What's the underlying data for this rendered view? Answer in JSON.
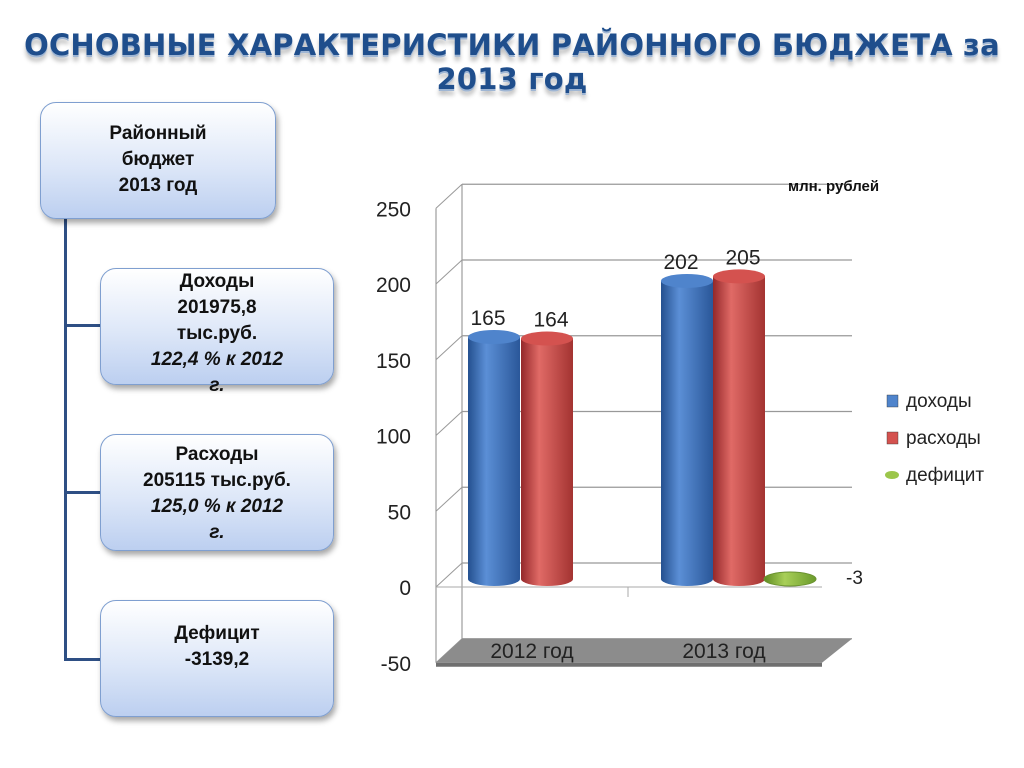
{
  "title": "ОСНОВНЫЕ ХАРАКТЕРИСТИКИ РАЙОННОГО БЮДЖЕТА за 2013 год",
  "budget_box": {
    "line1": "Районный",
    "line2": "бюджет",
    "line3": "2013 год"
  },
  "income_box": {
    "line1": "Доходы",
    "line2": "201975,8",
    "line3": "тыс.руб.",
    "line4": "122,4 % к 2012",
    "line5": "г."
  },
  "expense_box": {
    "line1": "Расходы",
    "line2": "205115 тыс.руб.",
    "line3": "125,0 % к 2012",
    "line4": "г."
  },
  "deficit_box": {
    "line1": "Дефицит",
    "line2": "-3139,2"
  },
  "chart_data": {
    "type": "bar",
    "unit_label": "млн. рублей",
    "categories": [
      "2012 год",
      "2013 год"
    ],
    "series": [
      {
        "name": "доходы",
        "values": [
          165,
          202
        ],
        "color": "#3a6db5"
      },
      {
        "name": "расходы",
        "values": [
          164,
          205
        ],
        "color": "#c0403d"
      },
      {
        "name": "дефицит",
        "values": [
          null,
          -3
        ],
        "color": "#8fb83e"
      }
    ],
    "ylim": [
      -50,
      250
    ],
    "yticks": [
      -50,
      0,
      50,
      100,
      150,
      200,
      250
    ],
    "grid": true,
    "legend": "right",
    "style": "3d-cylinder"
  }
}
